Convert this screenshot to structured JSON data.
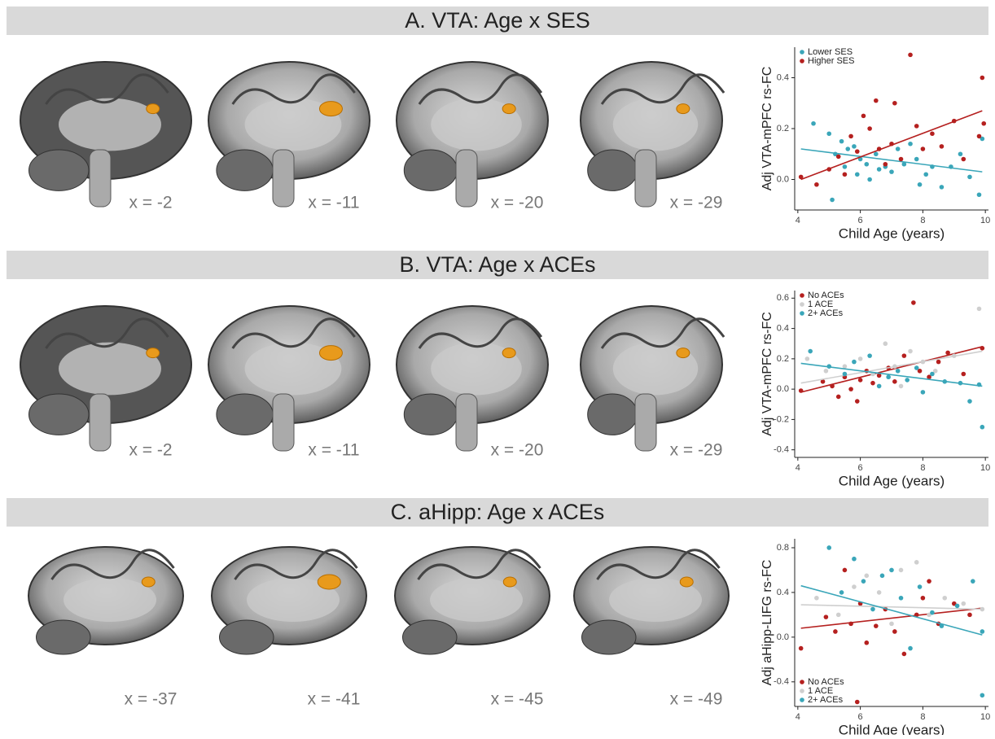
{
  "panel_titles": [
    "A. VTA: Age x SES",
    "B. VTA: Age x ACEs",
    "C. aHipp: Age x ACEs"
  ],
  "slice_labels": [
    [
      "x = -2",
      "x = -11",
      "x = -20",
      "x = -29"
    ],
    [
      "x = -2",
      "x = -11",
      "x = -20",
      "x = -29"
    ],
    [
      "x = -37",
      "x = -41",
      "x = -45",
      "x = -49"
    ]
  ],
  "chart_data": [
    {
      "type": "scatter",
      "y_label": "Adj VTA-mPFC rs-FC",
      "x_label": "Child Age (years)",
      "legend": "top-left",
      "xlim": [
        3.9,
        10.1
      ],
      "xticks": [
        4,
        6,
        8,
        10
      ],
      "ylim": [
        -0.12,
        0.52
      ],
      "yticks": [
        {
          "value": 0,
          "label": "0.0"
        },
        0.2,
        0.4
      ],
      "series": [
        {
          "name": "Lower SES",
          "color": "#3aa6b9",
          "x": [
            4.5,
            5.0,
            5.1,
            5.2,
            5.4,
            5.5,
            5.6,
            5.8,
            5.9,
            6.0,
            6.2,
            6.3,
            6.5,
            6.6,
            6.8,
            7.0,
            7.2,
            7.4,
            7.6,
            7.8,
            7.9,
            8.1,
            8.3,
            8.6,
            8.9,
            9.2,
            9.5,
            9.8,
            9.9
          ],
          "values": [
            0.22,
            0.18,
            -0.08,
            0.1,
            0.15,
            0.05,
            0.12,
            0.13,
            0.02,
            0.08,
            0.06,
            0.0,
            0.1,
            0.04,
            0.05,
            0.03,
            0.12,
            0.06,
            0.14,
            0.08,
            -0.02,
            0.02,
            0.05,
            -0.03,
            0.05,
            0.1,
            0.01,
            -0.06,
            0.16
          ],
          "trend_x": [
            4.1,
            9.9
          ],
          "trend_y": [
            0.12,
            0.03
          ]
        },
        {
          "name": "Higher SES",
          "color": "#b5201f",
          "x": [
            4.1,
            4.6,
            5.0,
            5.3,
            5.5,
            5.7,
            5.9,
            6.1,
            6.3,
            6.5,
            6.6,
            6.8,
            7.0,
            7.1,
            7.3,
            7.6,
            7.8,
            8.0,
            8.3,
            8.6,
            9.0,
            9.3,
            9.8,
            9.9,
            9.95
          ],
          "values": [
            0.01,
            -0.02,
            0.04,
            0.09,
            0.02,
            0.17,
            0.11,
            0.25,
            0.2,
            0.31,
            0.12,
            0.06,
            0.14,
            0.3,
            0.08,
            0.49,
            0.21,
            0.12,
            0.18,
            0.13,
            0.23,
            0.08,
            0.17,
            0.4,
            0.22
          ],
          "trend_x": [
            4.1,
            9.9
          ],
          "trend_y": [
            0.0,
            0.27
          ]
        }
      ]
    },
    {
      "type": "scatter",
      "y_label": "Adj VTA-mPFC rs-FC",
      "x_label": "Child Age (years)",
      "legend": "top-left",
      "xlim": [
        3.9,
        10.1
      ],
      "xticks": [
        4,
        6,
        8,
        10
      ],
      "ylim": [
        -0.45,
        0.65
      ],
      "yticks": [
        -0.4,
        -0.2,
        {
          "value": 0,
          "label": "0.0"
        },
        0.2,
        0.4,
        0.6
      ],
      "series": [
        {
          "name": "No ACEs",
          "color": "#b5201f",
          "x": [
            4.1,
            4.8,
            5.1,
            5.3,
            5.5,
            5.7,
            5.9,
            6.0,
            6.2,
            6.4,
            6.6,
            6.9,
            7.1,
            7.4,
            7.7,
            7.9,
            8.2,
            8.5,
            8.8,
            9.3,
            9.9
          ],
          "values": [
            -0.01,
            0.05,
            0.02,
            -0.05,
            0.08,
            0.0,
            -0.08,
            0.06,
            0.12,
            0.04,
            0.09,
            0.14,
            0.05,
            0.22,
            0.57,
            0.12,
            0.08,
            0.18,
            0.24,
            0.1,
            0.27
          ],
          "trend_x": [
            4.1,
            9.9
          ],
          "trend_y": [
            -0.02,
            0.28
          ]
        },
        {
          "name": "1 ACE",
          "color": "#cfcfcf",
          "x": [
            4.3,
            4.9,
            5.5,
            6.0,
            6.4,
            6.8,
            7.1,
            7.3,
            7.6,
            8.0,
            8.4,
            9.0,
            9.8
          ],
          "values": [
            0.2,
            0.12,
            0.15,
            0.2,
            0.1,
            0.3,
            0.15,
            0.02,
            0.25,
            0.18,
            0.12,
            0.22,
            0.53
          ],
          "trend_x": [
            4.1,
            9.9
          ],
          "trend_y": [
            0.04,
            0.25
          ]
        },
        {
          "name": "2+ ACEs",
          "color": "#3aa6b9",
          "x": [
            4.4,
            5.0,
            5.5,
            5.8,
            6.3,
            6.6,
            6.9,
            7.2,
            7.5,
            7.8,
            8.0,
            8.3,
            8.7,
            9.2,
            9.5,
            9.8,
            9.9
          ],
          "values": [
            0.25,
            0.15,
            0.1,
            0.18,
            0.22,
            0.02,
            0.08,
            0.12,
            0.06,
            0.14,
            -0.02,
            0.1,
            0.05,
            0.04,
            -0.08,
            0.03,
            -0.25
          ],
          "trend_x": [
            4.1,
            9.9
          ],
          "trend_y": [
            0.17,
            0.02
          ]
        }
      ]
    },
    {
      "type": "scatter",
      "y_label": "Adj aHipp-LIFG rs-FC",
      "x_label": "Child Age (years)",
      "legend": "bottom-left",
      "xlim": [
        3.9,
        10.1
      ],
      "xticks": [
        4,
        6,
        8,
        10
      ],
      "ylim": [
        -0.62,
        0.88
      ],
      "yticks": [
        -0.4,
        {
          "value": 0,
          "label": "0.0"
        },
        0.4,
        0.8
      ],
      "series": [
        {
          "name": "No ACEs",
          "color": "#b5201f",
          "x": [
            4.1,
            4.9,
            5.2,
            5.5,
            5.7,
            5.9,
            6.0,
            6.2,
            6.5,
            6.8,
            7.1,
            7.4,
            7.8,
            8.0,
            8.2,
            8.5,
            9.0,
            9.5
          ],
          "values": [
            -0.1,
            0.18,
            0.05,
            0.6,
            0.12,
            -0.58,
            0.3,
            -0.05,
            0.1,
            0.25,
            0.05,
            -0.15,
            0.2,
            0.35,
            0.5,
            0.12,
            0.3,
            0.2
          ],
          "trend_x": [
            4.1,
            9.9
          ],
          "trend_y": [
            0.08,
            0.26
          ]
        },
        {
          "name": "1 ACE",
          "color": "#cfcfcf",
          "x": [
            4.6,
            5.3,
            5.8,
            6.2,
            6.6,
            7.0,
            7.3,
            7.8,
            8.2,
            8.7,
            9.3,
            9.9
          ],
          "values": [
            0.35,
            0.2,
            0.45,
            0.55,
            0.4,
            0.12,
            0.6,
            0.67,
            0.2,
            0.35,
            0.3,
            0.25
          ],
          "trend_x": [
            4.1,
            9.9
          ],
          "trend_y": [
            0.29,
            0.25
          ]
        },
        {
          "name": "2+ ACEs",
          "color": "#3aa6b9",
          "x": [
            5.0,
            5.4,
            5.8,
            6.1,
            6.4,
            6.7,
            7.0,
            7.3,
            7.6,
            7.9,
            8.3,
            8.6,
            9.1,
            9.6,
            9.9,
            9.9
          ],
          "values": [
            0.8,
            0.4,
            0.7,
            0.5,
            0.25,
            0.55,
            0.6,
            0.35,
            -0.1,
            0.45,
            0.22,
            0.1,
            0.28,
            0.5,
            -0.52,
            0.05
          ],
          "trend_x": [
            4.1,
            9.9
          ],
          "trend_y": [
            0.46,
            0.02
          ]
        }
      ]
    }
  ]
}
